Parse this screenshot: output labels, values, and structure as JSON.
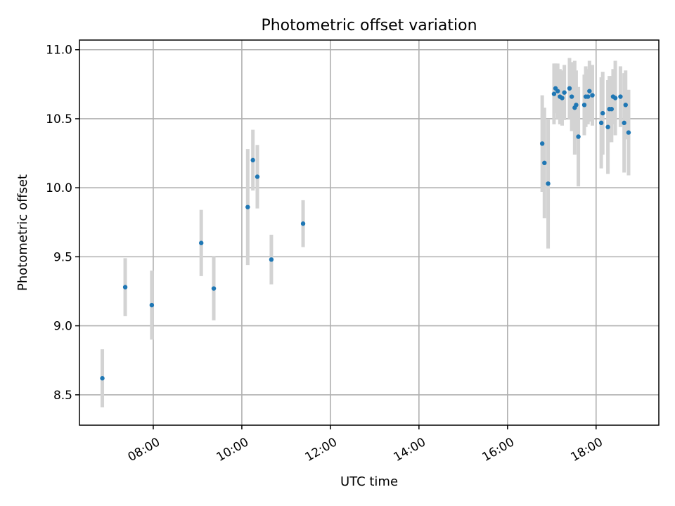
{
  "chart_data": {
    "type": "scatter",
    "title": "Photometric offset variation",
    "xlabel": "UTC time",
    "ylabel": "Photometric offset",
    "x_unit": "UTC hour of day",
    "xlim": [
      "06:20",
      "19:25"
    ],
    "ylim": [
      8.28,
      11.07
    ],
    "x_ticks": [
      "08:00",
      "10:00",
      "12:00",
      "14:00",
      "16:00",
      "18:00"
    ],
    "y_ticks": [
      "8.5",
      "9.0",
      "9.5",
      "10.0",
      "10.5",
      "11.0"
    ],
    "grid": true,
    "legend": "none",
    "marker_color": "#1f77b4",
    "errorbar_color": "#d3d3d3",
    "points": [
      {
        "x": "06:51",
        "y": 8.62,
        "err": 0.21
      },
      {
        "x": "07:22",
        "y": 9.28,
        "err": 0.21
      },
      {
        "x": "07:58",
        "y": 9.15,
        "err": 0.25
      },
      {
        "x": "09:05",
        "y": 9.6,
        "err": 0.24
      },
      {
        "x": "09:22",
        "y": 9.27,
        "err": 0.23
      },
      {
        "x": "10:08",
        "y": 9.86,
        "err": 0.42
      },
      {
        "x": "10:15",
        "y": 10.2,
        "err": 0.22
      },
      {
        "x": "10:21",
        "y": 10.08,
        "err": 0.23
      },
      {
        "x": "10:40",
        "y": 9.48,
        "err": 0.18
      },
      {
        "x": "11:23",
        "y": 9.74,
        "err": 0.17
      },
      {
        "x": "16:47",
        "y": 10.32,
        "err": 0.35
      },
      {
        "x": "16:50",
        "y": 10.18,
        "err": 0.4
      },
      {
        "x": "16:55",
        "y": 10.03,
        "err": 0.47
      },
      {
        "x": "17:03",
        "y": 10.68,
        "err": 0.22
      },
      {
        "x": "17:05",
        "y": 10.72,
        "err": 0.18
      },
      {
        "x": "17:08",
        "y": 10.7,
        "err": 0.2
      },
      {
        "x": "17:11",
        "y": 10.66,
        "err": 0.2
      },
      {
        "x": "17:14",
        "y": 10.65,
        "err": 0.2
      },
      {
        "x": "17:17",
        "y": 10.69,
        "err": 0.2
      },
      {
        "x": "17:24",
        "y": 10.72,
        "err": 0.22
      },
      {
        "x": "17:27",
        "y": 10.66,
        "err": 0.25
      },
      {
        "x": "17:31",
        "y": 10.58,
        "err": 0.34
      },
      {
        "x": "17:33",
        "y": 10.6,
        "err": 0.25
      },
      {
        "x": "17:36",
        "y": 10.37,
        "err": 0.36
      },
      {
        "x": "17:44",
        "y": 10.6,
        "err": 0.22
      },
      {
        "x": "17:46",
        "y": 10.66,
        "err": 0.22
      },
      {
        "x": "17:49",
        "y": 10.66,
        "err": 0.2
      },
      {
        "x": "17:51",
        "y": 10.7,
        "err": 0.22
      },
      {
        "x": "17:55",
        "y": 10.67,
        "err": 0.22
      },
      {
        "x": "18:07",
        "y": 10.47,
        "err": 0.33
      },
      {
        "x": "18:09",
        "y": 10.54,
        "err": 0.3
      },
      {
        "x": "18:16",
        "y": 10.44,
        "err": 0.34
      },
      {
        "x": "18:18",
        "y": 10.57,
        "err": 0.24
      },
      {
        "x": "18:21",
        "y": 10.57,
        "err": 0.24
      },
      {
        "x": "18:23",
        "y": 10.66,
        "err": 0.2
      },
      {
        "x": "18:26",
        "y": 10.65,
        "err": 0.27
      },
      {
        "x": "18:33",
        "y": 10.66,
        "err": 0.22
      },
      {
        "x": "18:38",
        "y": 10.47,
        "err": 0.36
      },
      {
        "x": "18:40",
        "y": 10.6,
        "err": 0.25
      },
      {
        "x": "18:44",
        "y": 10.4,
        "err": 0.31
      }
    ]
  }
}
